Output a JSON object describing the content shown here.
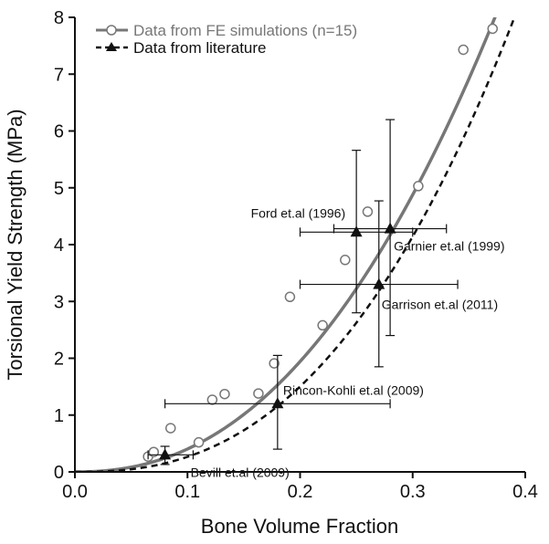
{
  "chart_data": {
    "type": "scatter",
    "xlabel": "Bone Volume Fraction",
    "ylabel": "Torsional Yield Strength (MPa)",
    "xlim": [
      0.0,
      0.4
    ],
    "ylim": [
      0,
      8
    ],
    "x_ticks": [
      "0.0",
      "0.1",
      "0.2",
      "0.3",
      "0.4"
    ],
    "y_ticks": [
      "0",
      "1",
      "2",
      "3",
      "4",
      "5",
      "6",
      "7",
      "8"
    ],
    "grid": false,
    "legend_position": "top-left",
    "colors": {
      "fe": "#777777",
      "lit": "#111111"
    },
    "series": [
      {
        "name": "Data from FE simulations (n=15)",
        "marker": "open-circle",
        "line": "solid",
        "points": [
          {
            "x": 0.065,
            "y": 0.27
          },
          {
            "x": 0.07,
            "y": 0.35
          },
          {
            "x": 0.085,
            "y": 0.77
          },
          {
            "x": 0.11,
            "y": 0.52
          },
          {
            "x": 0.122,
            "y": 1.27
          },
          {
            "x": 0.133,
            "y": 1.37
          },
          {
            "x": 0.163,
            "y": 1.38
          },
          {
            "x": 0.177,
            "y": 1.91
          },
          {
            "x": 0.191,
            "y": 3.08
          },
          {
            "x": 0.22,
            "y": 2.58
          },
          {
            "x": 0.24,
            "y": 3.73
          },
          {
            "x": 0.26,
            "y": 4.58
          },
          {
            "x": 0.305,
            "y": 5.03
          },
          {
            "x": 0.345,
            "y": 7.43
          },
          {
            "x": 0.371,
            "y": 7.8
          }
        ],
        "fit_curve": {
          "form": "a*x^b",
          "a": 75.0,
          "b": 2.27
        }
      },
      {
        "name": "Data from literature",
        "marker": "filled-triangle",
        "line": "dashed",
        "points": [
          {
            "label": "Bevill et.al (2009)",
            "x": 0.08,
            "y": 0.3,
            "xerr": [
              0.065,
              0.105
            ],
            "yerr": [
              0.13,
              0.45
            ]
          },
          {
            "label": "Rincon-Kohli et.al (2009)",
            "x": 0.18,
            "y": 1.2,
            "xerr": [
              0.08,
              0.28
            ],
            "yerr": [
              0.4,
              2.05
            ]
          },
          {
            "label": "Ford et.al (1996)",
            "x": 0.25,
            "y": 4.22,
            "xerr": [
              0.2,
              0.3
            ],
            "yerr": [
              2.8,
              5.66
            ]
          },
          {
            "label": "Garnier et.al (1999)",
            "x": 0.28,
            "y": 4.28,
            "xerr": [
              0.23,
              0.33
            ],
            "yerr": [
              2.4,
              6.2
            ]
          },
          {
            "label": "Garrison et.al (2011)",
            "x": 0.27,
            "y": 3.3,
            "xerr": [
              0.2,
              0.34
            ],
            "yerr": [
              1.85,
              4.77
            ]
          }
        ],
        "fit_curve": {
          "form": "a*x^b",
          "a": 84.0,
          "b": 2.5
        }
      }
    ]
  }
}
